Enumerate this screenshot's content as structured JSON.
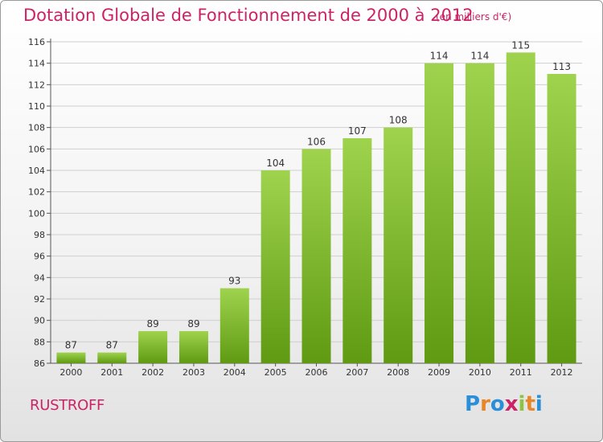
{
  "chart_data": {
    "type": "bar",
    "title": "Dotation Globale de Fonctionnement de 2000 à 2012",
    "subtitle": "(en milliers d'€)",
    "categories": [
      "2000",
      "2001",
      "2002",
      "2003",
      "2004",
      "2005",
      "2006",
      "2007",
      "2008",
      "2009",
      "2010",
      "2011",
      "2012"
    ],
    "values": [
      87,
      87,
      89,
      89,
      93,
      104,
      106,
      107,
      108,
      114,
      114,
      115,
      113
    ],
    "ylim": [
      86,
      116
    ],
    "yticks": [
      86,
      88,
      90,
      92,
      94,
      96,
      98,
      100,
      102,
      104,
      106,
      108,
      110,
      112,
      114,
      116
    ],
    "grid": true,
    "colors": {
      "bar_top": "#9fd34e",
      "bar_bottom": "#5f9a12",
      "grid": "#cfcfcf",
      "title": "#cc2266"
    }
  },
  "commune": "RUSTROFF",
  "logo": {
    "letters": [
      "P",
      "r",
      "o",
      "x",
      "i",
      "t",
      "i"
    ],
    "colors": [
      "#2a8fd8",
      "#e8862a",
      "#2a8fd8",
      "#cc2266",
      "#8bc53f",
      "#e8862a",
      "#2a8fd8"
    ]
  }
}
